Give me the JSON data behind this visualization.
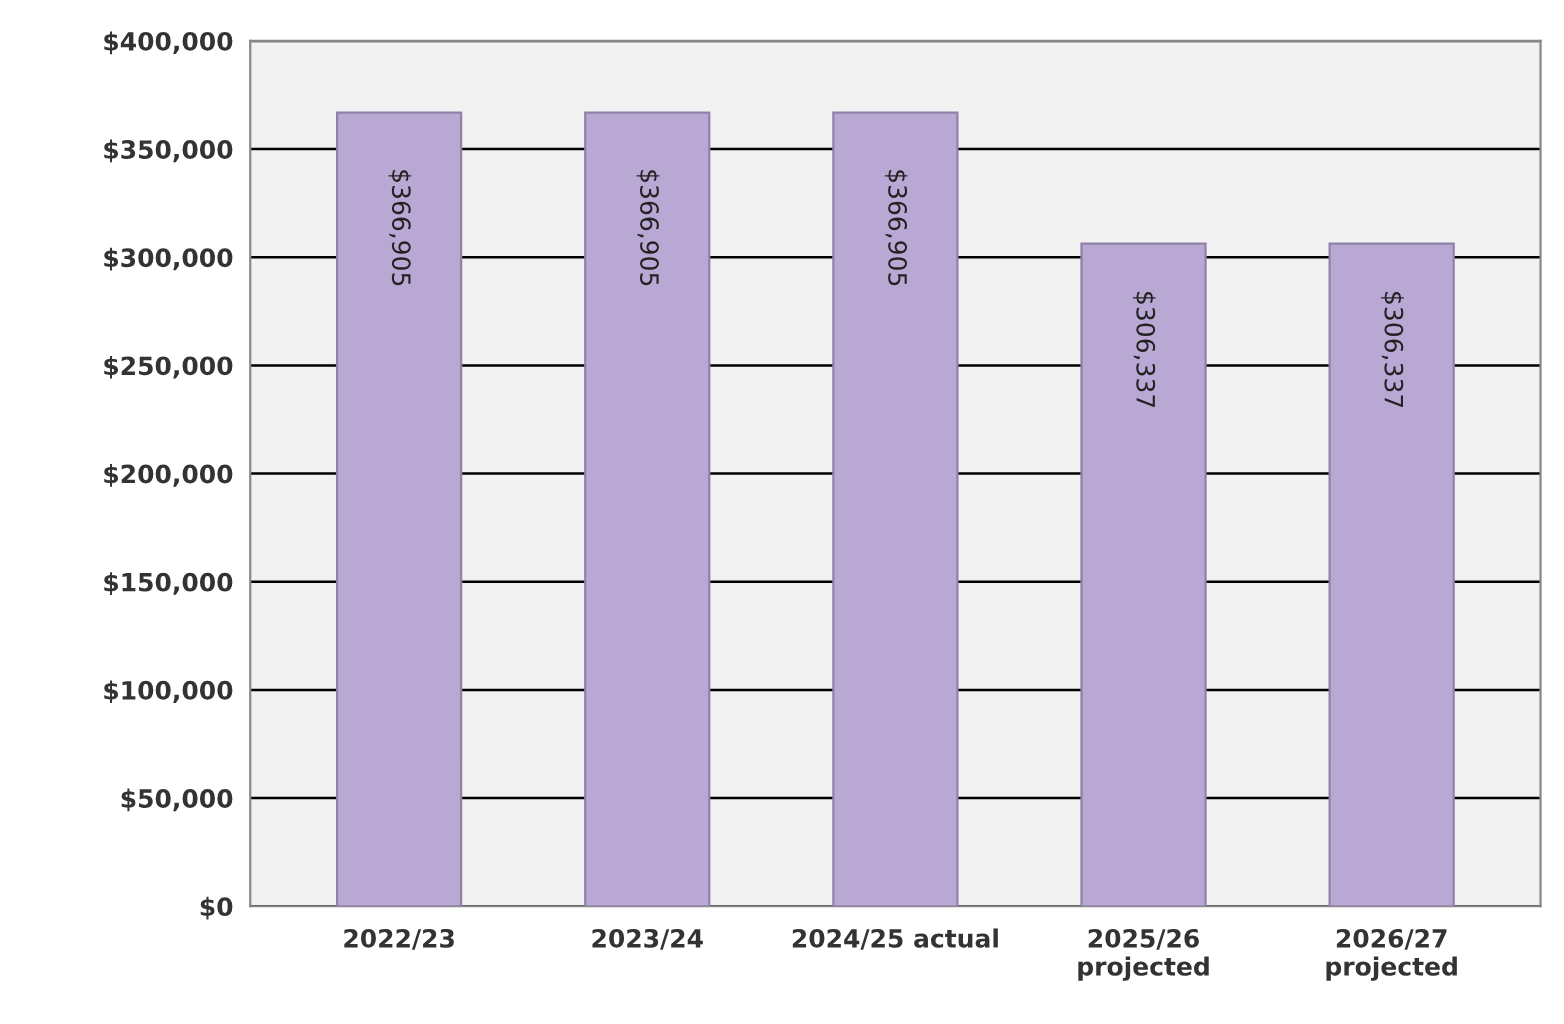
{
  "chart_data": {
    "type": "bar",
    "categories": [
      "2022/23",
      "2023/24",
      "2024/25 actual",
      "2025/26\nprojected",
      "2026/27\nprojected"
    ],
    "values": [
      366905,
      366905,
      366905,
      306337,
      306337
    ],
    "value_labels": [
      "$366,905",
      "$366,905",
      "$366,905",
      "$306,337",
      "$306,337"
    ],
    "color": "#b9a8d4",
    "ylim": [
      0,
      400000
    ],
    "yticks": [
      {
        "value": 0,
        "label": "$0"
      },
      {
        "value": 50000,
        "label": "$50,000"
      },
      {
        "value": 100000,
        "label": "$100,000"
      },
      {
        "value": 150000,
        "label": "$150,000"
      },
      {
        "value": 200000,
        "label": "$200,000"
      },
      {
        "value": 250000,
        "label": "$250,000"
      },
      {
        "value": 300000,
        "label": "$300,000"
      },
      {
        "value": 350000,
        "label": "$350,000"
      },
      {
        "value": 400000,
        "label": "$400,000"
      }
    ],
    "grid": "y"
  }
}
